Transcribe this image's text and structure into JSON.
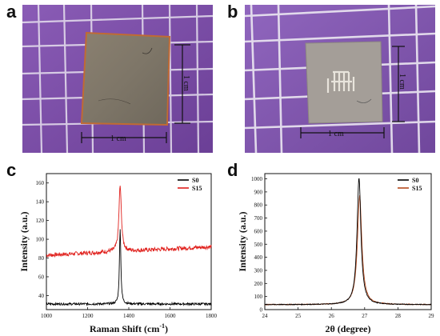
{
  "figure": {
    "panels": [
      {
        "letter": "a",
        "scale_labels": [
          "1 cm",
          "1 cm"
        ]
      },
      {
        "letter": "b",
        "scale_labels": [
          "1 cm",
          "1 cm"
        ]
      },
      {
        "letter": "c"
      },
      {
        "letter": "d"
      }
    ],
    "colors": {
      "background_paper": "#7c4fa4",
      "grid_lines": "#e8e4ee",
      "s0": "#000000",
      "s15": "#e0201c",
      "s15_d": "#b54a1e"
    }
  },
  "chart_data": [
    {
      "type": "line",
      "xlabel": "Raman Shift (cm",
      "xlabel_sup": "-1",
      "xlabel_close": ")",
      "ylabel": "Intensity (a.u.)",
      "xlim": [
        1000,
        1800
      ],
      "ylim": [
        25,
        170
      ],
      "xticks": [
        1000,
        1200,
        1400,
        1600,
        1800
      ],
      "yticks": [
        40,
        60,
        80,
        100,
        120,
        140,
        160
      ],
      "legend_position": "top-right",
      "series": [
        {
          "name": "S0",
          "color": "#000000",
          "baseline": 31,
          "noise": 1.2,
          "peak_x": 1358,
          "peak_y": 112,
          "peak_width": 4
        },
        {
          "name": "S15",
          "color": "#e0201c",
          "baseline": 83,
          "baseline_end": 92,
          "noise": 2.2,
          "peak_x": 1358,
          "peak_y": 157,
          "peak_width": 7
        }
      ]
    },
    {
      "type": "line",
      "xlabel": "2θ (degree)",
      "ylabel": "Intensity (a.u.)",
      "xlim": [
        24,
        29
      ],
      "ylim": [
        0,
        1040
      ],
      "xticks": [
        24,
        25,
        26,
        27,
        28,
        29
      ],
      "yticks": [
        0,
        100,
        200,
        300,
        400,
        500,
        600,
        700,
        800,
        900,
        1000
      ],
      "legend_position": "top-right",
      "series": [
        {
          "name": "S0",
          "color": "#000000",
          "baseline": 38,
          "peak_x": 26.83,
          "peak_y": 1008,
          "peak_width": 0.07
        },
        {
          "name": "S15",
          "color": "#b54a1e",
          "baseline": 38,
          "peak_x": 26.85,
          "peak_y": 868,
          "peak_width": 0.08
        }
      ]
    }
  ]
}
